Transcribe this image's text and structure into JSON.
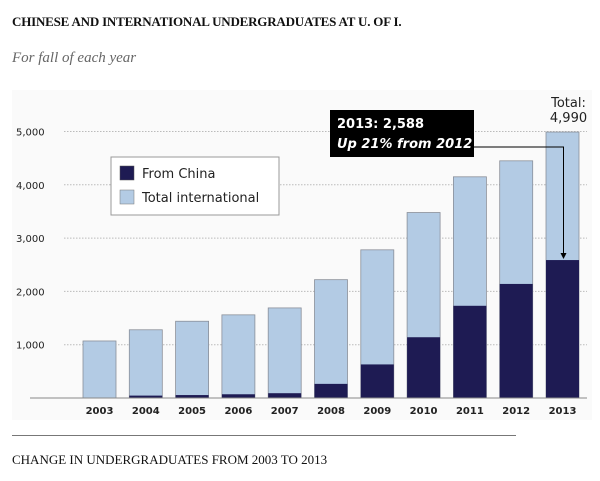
{
  "title": "CHINESE AND INTERNATIONAL UNDERGRADUATES AT U. OF I.",
  "subtitle": "For fall of each year",
  "footer": "CHANGE IN UNDERGRADUATES FROM 2003 TO 2013",
  "colors": {
    "china": "#1e1b53",
    "international": "#b3cbe4",
    "callout_bg": "#000000"
  },
  "chart_data": {
    "type": "bar",
    "stacked": "overlay",
    "title": "CHINESE AND INTERNATIONAL UNDERGRADUATES AT U. OF I.",
    "subtitle": "For fall of each year",
    "xlabel": "",
    "ylabel": "",
    "categories": [
      "2003",
      "2004",
      "2005",
      "2006",
      "2007",
      "2008",
      "2009",
      "2010",
      "2011",
      "2012",
      "2013"
    ],
    "series": [
      {
        "name": "Total international",
        "values": [
          1070,
          1280,
          1440,
          1560,
          1690,
          2220,
          2780,
          3480,
          4150,
          4450,
          4990
        ]
      },
      {
        "name": "From China",
        "values": [
          5,
          45,
          55,
          70,
          90,
          265,
          630,
          1140,
          1730,
          2140,
          2588
        ]
      }
    ],
    "yticks": [
      1000,
      2000,
      3000,
      4000,
      5000
    ],
    "ytick_labels": [
      "1,000",
      "2,000",
      "3,000",
      "4,000",
      "5,000"
    ],
    "ylim": [
      0,
      5000
    ],
    "grid": true,
    "legend": {
      "position": "top-left",
      "entries": [
        "From China",
        "Total international"
      ]
    },
    "annotations": {
      "callout_line1": "2013: 2,588",
      "callout_line2": "Up 21% from 2012",
      "total_label": "Total:",
      "total_value": "4,990"
    }
  }
}
